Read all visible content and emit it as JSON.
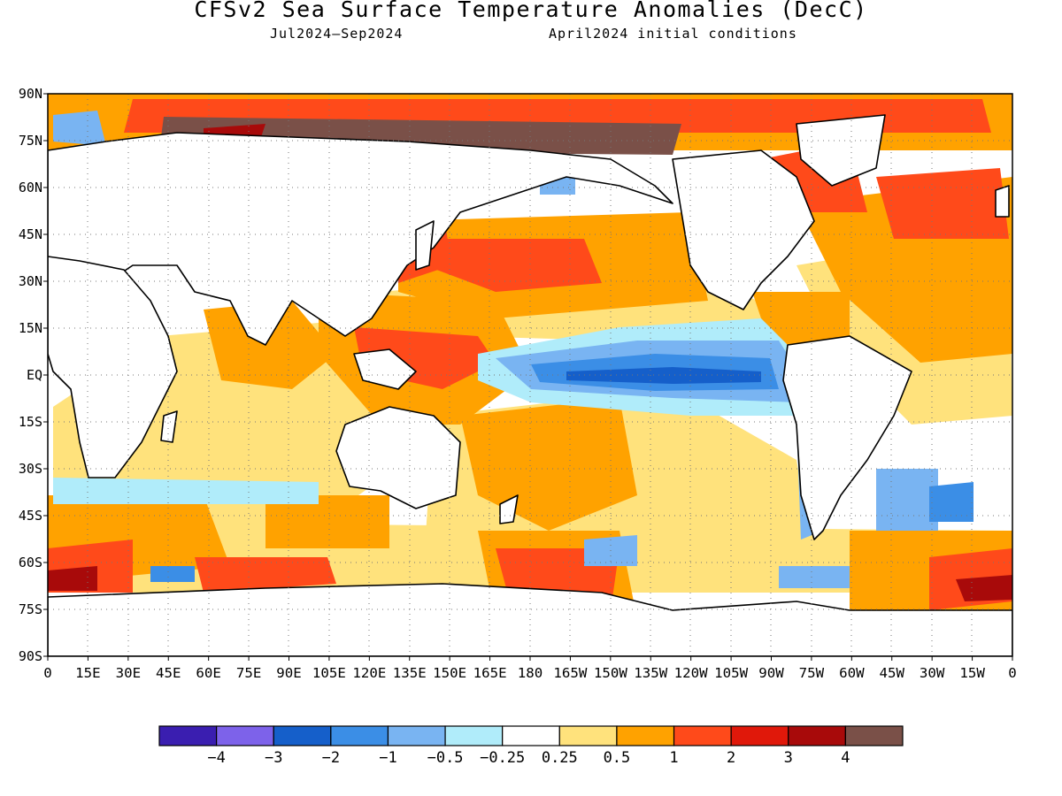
{
  "header": {
    "title": "CFSv2 Sea Surface Temperature Anomalies (DecC)",
    "period": "Jul2024—Sep2024",
    "init": "April2024 initial conditions"
  },
  "axes": {
    "lat_labels": [
      "90N",
      "75N",
      "60N",
      "45N",
      "30N",
      "15N",
      "EQ",
      "15S",
      "30S",
      "45S",
      "60S",
      "75S",
      "90S"
    ],
    "lon_labels": [
      "0",
      "15E",
      "30E",
      "45E",
      "60E",
      "75E",
      "90E",
      "105E",
      "120E",
      "135E",
      "150E",
      "165E",
      "180",
      "165W",
      "150W",
      "135W",
      "120W",
      "105W",
      "90W",
      "75W",
      "60W",
      "45W",
      "30W",
      "15W",
      "0"
    ]
  },
  "legend": {
    "colors": [
      "#3a1eb0",
      "#7d62ea",
      "#155fca",
      "#3b8ee6",
      "#79b4f2",
      "#b0ecfa",
      "#ffffff",
      "#ffe27c",
      "#ffa200",
      "#ff4a1a",
      "#e0180a",
      "#a80a0a",
      "#7a5048"
    ],
    "labels": [
      "−4",
      "−3",
      "−2",
      "−1",
      "−0.5",
      "−0.25",
      "0.25",
      "0.5",
      "1",
      "2",
      "3",
      "4"
    ]
  },
  "map_data": {
    "units": "DecC",
    "lon_range": [
      0,
      360
    ],
    "lat_range": [
      -90,
      90
    ],
    "features": [
      {
        "name": "equatorial-pacific-cold-tongue",
        "category": "-1"
      },
      {
        "name": "equatorial-pacific-cold-core",
        "category": "-2"
      },
      {
        "name": "western-pacific-warm-pool",
        "category": "2"
      },
      {
        "name": "north-pacific-warm-band",
        "category": "2"
      },
      {
        "name": "arctic-siberian-shelf",
        "category": "4"
      },
      {
        "name": "north-atlantic-warm",
        "category": "1"
      },
      {
        "name": "southern-ocean-warm-patches",
        "category": "2"
      },
      {
        "name": "south-atlantic-mixed",
        "category": "-1"
      }
    ]
  }
}
